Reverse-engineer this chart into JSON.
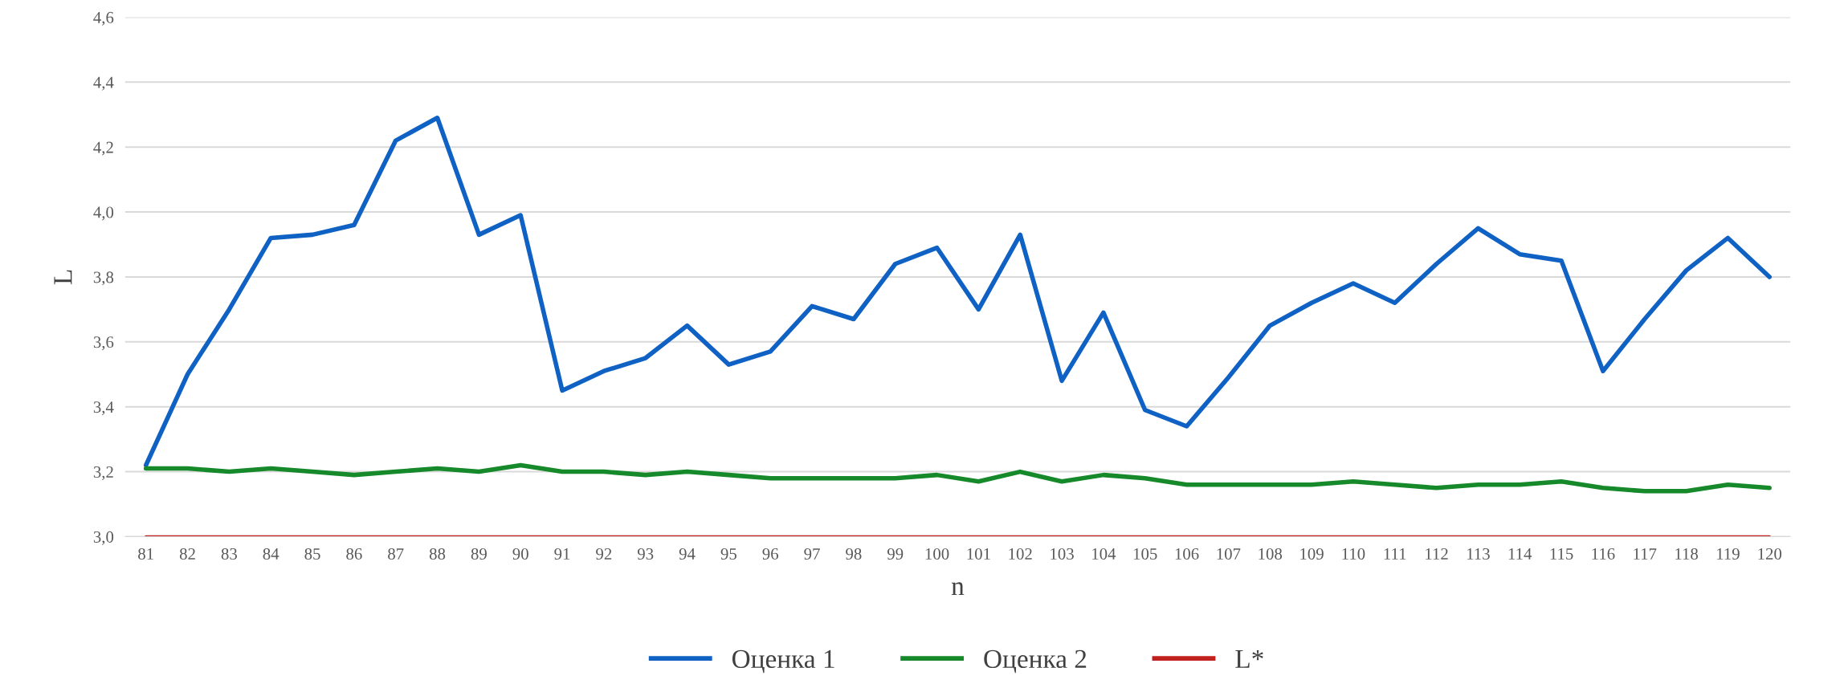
{
  "chart_data": {
    "type": "line",
    "xlabel": "n",
    "ylabel": "L",
    "categories": [
      "81",
      "82",
      "83",
      "84",
      "85",
      "86",
      "87",
      "88",
      "89",
      "90",
      "91",
      "92",
      "93",
      "94",
      "95",
      "96",
      "97",
      "98",
      "99",
      "100",
      "101",
      "102",
      "103",
      "104",
      "105",
      "106",
      "107",
      "108",
      "109",
      "110",
      "111",
      "112",
      "113",
      "114",
      "115",
      "116",
      "117",
      "118",
      "119",
      "120"
    ],
    "series": [
      {
        "name": "Оценка 1",
        "color": "#0f62c4",
        "values": [
          3.22,
          3.5,
          3.7,
          3.92,
          3.93,
          3.96,
          4.22,
          4.29,
          3.93,
          3.99,
          3.45,
          3.51,
          3.55,
          3.65,
          3.53,
          3.57,
          3.71,
          3.67,
          3.84,
          3.89,
          3.7,
          3.93,
          3.48,
          3.69,
          3.39,
          3.34,
          3.49,
          3.65,
          3.72,
          3.78,
          3.72,
          3.84,
          3.95,
          3.87,
          3.85,
          3.51,
          3.67,
          3.82,
          3.92,
          3.8
        ]
      },
      {
        "name": "Оценка 2",
        "color": "#168a2a",
        "values": [
          3.21,
          3.21,
          3.2,
          3.21,
          3.2,
          3.19,
          3.2,
          3.21,
          3.2,
          3.22,
          3.2,
          3.2,
          3.19,
          3.2,
          3.19,
          3.18,
          3.18,
          3.18,
          3.18,
          3.19,
          3.17,
          3.2,
          3.17,
          3.19,
          3.18,
          3.16,
          3.16,
          3.16,
          3.16,
          3.17,
          3.16,
          3.15,
          3.16,
          3.16,
          3.17,
          3.15,
          3.14,
          3.14,
          3.16,
          3.15
        ]
      },
      {
        "name": "L*",
        "color": "#c0201e",
        "values": [
          3.0,
          3.0,
          3.0,
          3.0,
          3.0,
          3.0,
          3.0,
          3.0,
          3.0,
          3.0,
          3.0,
          3.0,
          3.0,
          3.0,
          3.0,
          3.0,
          3.0,
          3.0,
          3.0,
          3.0,
          3.0,
          3.0,
          3.0,
          3.0,
          3.0,
          3.0,
          3.0,
          3.0,
          3.0,
          3.0,
          3.0,
          3.0,
          3.0,
          3.0,
          3.0,
          3.0,
          3.0,
          3.0,
          3.0,
          3.0
        ]
      }
    ],
    "ylim": [
      3.0,
      4.6
    ],
    "yticks": [
      {
        "value": 3.0,
        "label": "3,0"
      },
      {
        "value": 3.2,
        "label": "3,2"
      },
      {
        "value": 3.4,
        "label": "3,4"
      },
      {
        "value": 3.6,
        "label": "3,6"
      },
      {
        "value": 3.8,
        "label": "3,8"
      },
      {
        "value": 4.0,
        "label": "4,0"
      },
      {
        "value": 4.2,
        "label": "4,2"
      },
      {
        "value": 4.4,
        "label": "4,4"
      },
      {
        "value": 4.6,
        "label": "4,6"
      }
    ],
    "grid": "y",
    "legend": "bottom",
    "marker": "none",
    "line_style": "solid"
  }
}
